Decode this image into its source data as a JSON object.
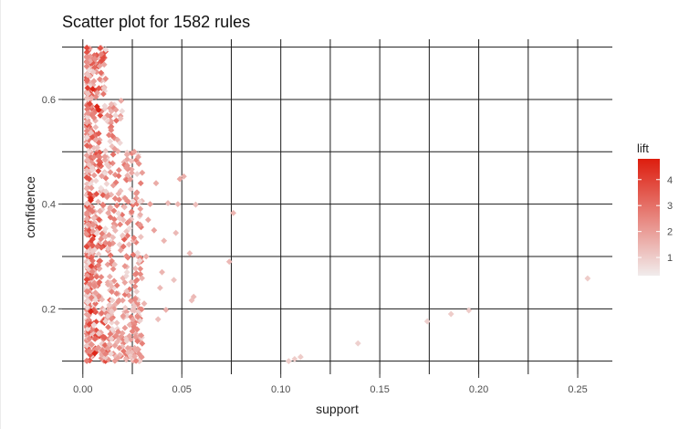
{
  "chart_data": {
    "type": "scatter",
    "title": "Scatter plot for 1582 rules",
    "xlabel": "support",
    "ylabel": "confidence",
    "xlim": [
      -0.0105,
      0.2675
    ],
    "ylim": [
      0.075,
      0.715
    ],
    "x_ticks": [
      0.0,
      0.05,
      0.1,
      0.15,
      0.2,
      0.25
    ],
    "x_tick_labels": [
      "0.00",
      "0.05",
      "0.10",
      "0.15",
      "0.20",
      "0.25"
    ],
    "y_ticks": [
      0.2,
      0.4,
      0.6
    ],
    "y_tick_labels": [
      "0.2",
      "0.4",
      "0.6"
    ],
    "x_gridlines": [
      0.0,
      0.025,
      0.05,
      0.075,
      0.1,
      0.125,
      0.15,
      0.175,
      0.2,
      0.225,
      0.25
    ],
    "y_gridlines": [
      0.1,
      0.2,
      0.3,
      0.4,
      0.5,
      0.6,
      0.7
    ],
    "grid": true,
    "color_encoding": {
      "variable": "lift",
      "range": [
        0.3,
        4.8
      ],
      "low_color": "#f1ecec",
      "high_color": "#dd1d0e"
    },
    "legend": {
      "title": "lift",
      "ticks": [
        1,
        2,
        3,
        4
      ],
      "tick_labels": [
        "1",
        "2",
        "3",
        "4"
      ],
      "position": "right"
    },
    "dense_cluster": {
      "note": "1582 rules, most concentrated at support 0.002-0.03",
      "support_range": [
        0.002,
        0.03
      ],
      "confidence_range": [
        0.1,
        0.7
      ]
    },
    "points": [
      {
        "x": 0.255,
        "y": 0.258,
        "lift": 1.0
      },
      {
        "x": 0.195,
        "y": 0.197,
        "lift": 1.0
      },
      {
        "x": 0.186,
        "y": 0.19,
        "lift": 1.0
      },
      {
        "x": 0.174,
        "y": 0.176,
        "lift": 0.9
      },
      {
        "x": 0.139,
        "y": 0.134,
        "lift": 0.9
      },
      {
        "x": 0.11,
        "y": 0.108,
        "lift": 1.0
      },
      {
        "x": 0.107,
        "y": 0.104,
        "lift": 1.0
      },
      {
        "x": 0.104,
        "y": 0.1,
        "lift": 1.0
      },
      {
        "x": 0.076,
        "y": 0.383,
        "lift": 1.5
      },
      {
        "x": 0.074,
        "y": 0.29,
        "lift": 1.4
      },
      {
        "x": 0.057,
        "y": 0.399,
        "lift": 1.3
      },
      {
        "x": 0.056,
        "y": 0.223,
        "lift": 1.4
      },
      {
        "x": 0.055,
        "y": 0.216,
        "lift": 1.3
      },
      {
        "x": 0.054,
        "y": 0.306,
        "lift": 1.4
      },
      {
        "x": 0.051,
        "y": 0.453,
        "lift": 1.6
      },
      {
        "x": 0.049,
        "y": 0.448,
        "lift": 1.8
      },
      {
        "x": 0.048,
        "y": 0.4,
        "lift": 1.5
      },
      {
        "x": 0.047,
        "y": 0.345,
        "lift": 1.4
      },
      {
        "x": 0.046,
        "y": 0.255,
        "lift": 1.2
      },
      {
        "x": 0.043,
        "y": 0.402,
        "lift": 1.4
      },
      {
        "x": 0.042,
        "y": 0.198,
        "lift": 1.6
      },
      {
        "x": 0.041,
        "y": 0.33,
        "lift": 1.5
      },
      {
        "x": 0.04,
        "y": 0.27,
        "lift": 1.5
      },
      {
        "x": 0.039,
        "y": 0.24,
        "lift": 1.4
      },
      {
        "x": 0.038,
        "y": 0.18,
        "lift": 1.3
      },
      {
        "x": 0.037,
        "y": 0.44,
        "lift": 1.7
      },
      {
        "x": 0.036,
        "y": 0.35,
        "lift": 1.9
      },
      {
        "x": 0.034,
        "y": 0.4,
        "lift": 2.0
      },
      {
        "x": 0.033,
        "y": 0.37,
        "lift": 1.8
      },
      {
        "x": 0.032,
        "y": 0.3,
        "lift": 1.7
      },
      {
        "x": 0.031,
        "y": 0.21,
        "lift": 1.5
      },
      {
        "x": 0.03,
        "y": 0.46,
        "lift": 2.0
      },
      {
        "x": 0.029,
        "y": 0.38,
        "lift": 1.6
      },
      {
        "x": 0.028,
        "y": 0.49,
        "lift": 1.9
      },
      {
        "x": 0.027,
        "y": 0.42,
        "lift": 2.2
      },
      {
        "x": 0.026,
        "y": 0.5,
        "lift": 2.0
      }
    ]
  }
}
